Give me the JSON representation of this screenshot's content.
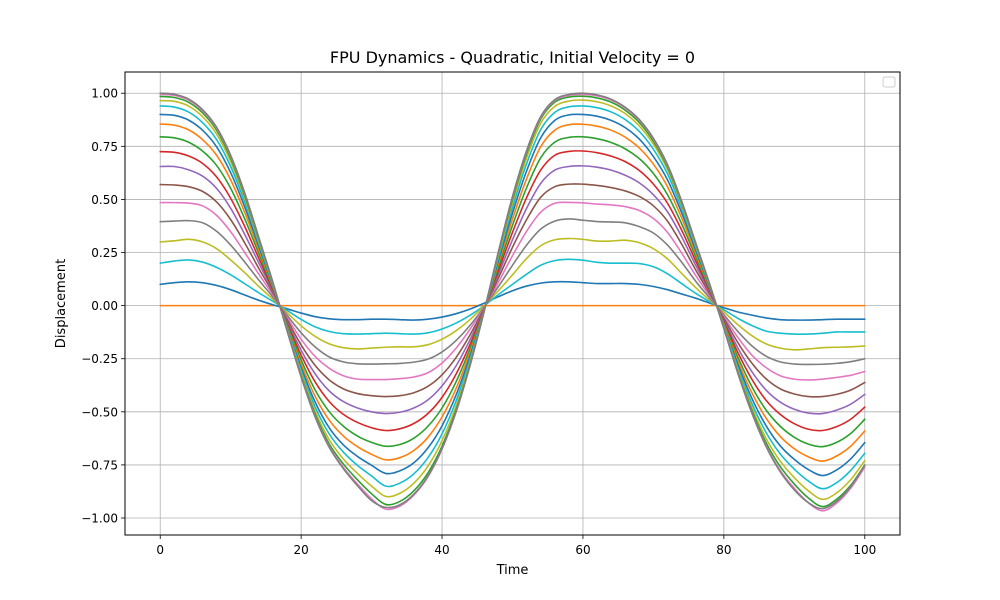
{
  "chart_data": {
    "type": "line",
    "title": "FPU Dynamics - Quadratic, Initial Velocity = 0",
    "xlabel": "Time",
    "ylabel": "Displacement",
    "xlim": [
      -5,
      105
    ],
    "ylim": [
      -1.08,
      1.1
    ],
    "x_ticks": [
      0,
      20,
      40,
      60,
      80,
      100
    ],
    "x_tick_labels": [
      "0",
      "20",
      "40",
      "60",
      "80",
      "100"
    ],
    "y_ticks": [
      -1.0,
      -0.75,
      -0.5,
      -0.25,
      0.0,
      0.25,
      0.5,
      0.75,
      1.0
    ],
    "y_tick_labels": [
      "−1.00",
      "−0.75",
      "−0.50",
      "−0.25",
      "0.00",
      "0.25",
      "0.50",
      "0.75",
      "1.00"
    ],
    "grid": true,
    "legend": {
      "placement": "top-right",
      "entries": []
    },
    "x": [
      0,
      2,
      4,
      6,
      8,
      10,
      12,
      14,
      16,
      18,
      20,
      22,
      24,
      26,
      28,
      30,
      32,
      34,
      36,
      38,
      40,
      42,
      44,
      46,
      48,
      50,
      52,
      54,
      56,
      58,
      60,
      62,
      64,
      66,
      68,
      70,
      72,
      74,
      76,
      78,
      80,
      82,
      84,
      86,
      88,
      90,
      92,
      94,
      96,
      98,
      100
    ],
    "series": [
      {
        "color": "#ff7f0e",
        "values": [
          0,
          0,
          0,
          0,
          0,
          0,
          0,
          0,
          0,
          0,
          0,
          0,
          0,
          0,
          0,
          0,
          0,
          0,
          0,
          0,
          0,
          0,
          0,
          0,
          0,
          0,
          0,
          0,
          0,
          0,
          0,
          0,
          0,
          0,
          0,
          0,
          0,
          0,
          0,
          0,
          0,
          0,
          0,
          0,
          0,
          0,
          0,
          0,
          0,
          0,
          0
        ]
      },
      {
        "color": "#1f77b4",
        "values": [
          0.1,
          0.108,
          0.112,
          0.108,
          0.095,
          0.075,
          0.05,
          0.025,
          0.004,
          -0.015,
          -0.035,
          -0.052,
          -0.062,
          -0.066,
          -0.066,
          -0.064,
          -0.064,
          -0.066,
          -0.068,
          -0.064,
          -0.054,
          -0.038,
          -0.016,
          0.012,
          0.042,
          0.07,
          0.092,
          0.106,
          0.112,
          0.112,
          0.108,
          0.104,
          0.104,
          0.104,
          0.1,
          0.09,
          0.075,
          0.055,
          0.035,
          0.012,
          -0.01,
          -0.03,
          -0.045,
          -0.058,
          -0.066,
          -0.068,
          -0.068,
          -0.066,
          -0.064,
          -0.064,
          -0.064
        ]
      },
      {
        "color": "#17becf",
        "values": [
          0.2,
          0.21,
          0.215,
          0.205,
          0.18,
          0.145,
          0.103,
          0.06,
          0.02,
          -0.022,
          -0.065,
          -0.1,
          -0.122,
          -0.132,
          -0.134,
          -0.132,
          -0.13,
          -0.132,
          -0.134,
          -0.128,
          -0.11,
          -0.082,
          -0.045,
          0.0,
          0.052,
          0.1,
          0.148,
          0.19,
          0.212,
          0.218,
          0.214,
          0.204,
          0.2,
          0.2,
          0.198,
          0.183,
          0.15,
          0.104,
          0.058,
          0.018,
          -0.02,
          -0.06,
          -0.094,
          -0.12,
          -0.13,
          -0.134,
          -0.134,
          -0.13,
          -0.124,
          -0.124,
          -0.124
        ]
      },
      {
        "color": "#bcbd22",
        "values": [
          0.3,
          0.305,
          0.312,
          0.3,
          0.268,
          0.215,
          0.155,
          0.09,
          0.03,
          -0.033,
          -0.095,
          -0.145,
          -0.18,
          -0.198,
          -0.204,
          -0.2,
          -0.196,
          -0.194,
          -0.194,
          -0.184,
          -0.158,
          -0.118,
          -0.065,
          0.0,
          0.07,
          0.145,
          0.222,
          0.282,
          0.31,
          0.316,
          0.312,
          0.304,
          0.304,
          0.308,
          0.296,
          0.268,
          0.22,
          0.152,
          0.085,
          0.025,
          -0.03,
          -0.09,
          -0.142,
          -0.18,
          -0.2,
          -0.208,
          -0.204,
          -0.198,
          -0.196,
          -0.194,
          -0.19
        ]
      },
      {
        "color": "#7f7f7f",
        "values": [
          0.395,
          0.398,
          0.4,
          0.39,
          0.35,
          0.285,
          0.205,
          0.12,
          0.04,
          -0.045,
          -0.128,
          -0.195,
          -0.242,
          -0.265,
          -0.274,
          -0.275,
          -0.274,
          -0.272,
          -0.266,
          -0.252,
          -0.218,
          -0.164,
          -0.092,
          -0.005,
          0.09,
          0.19,
          0.285,
          0.36,
          0.398,
          0.408,
          0.402,
          0.396,
          0.394,
          0.39,
          0.372,
          0.342,
          0.285,
          0.205,
          0.115,
          0.035,
          -0.043,
          -0.122,
          -0.19,
          -0.238,
          -0.265,
          -0.275,
          -0.277,
          -0.276,
          -0.272,
          -0.264,
          -0.25
        ]
      },
      {
        "color": "#e377c2",
        "values": [
          0.485,
          0.485,
          0.483,
          0.47,
          0.425,
          0.348,
          0.25,
          0.148,
          0.05,
          -0.055,
          -0.158,
          -0.24,
          -0.295,
          -0.33,
          -0.346,
          -0.348,
          -0.348,
          -0.344,
          -0.336,
          -0.316,
          -0.27,
          -0.2,
          -0.11,
          -0.007,
          0.11,
          0.235,
          0.35,
          0.44,
          0.482,
          0.486,
          0.484,
          0.478,
          0.474,
          0.466,
          0.448,
          0.41,
          0.345,
          0.248,
          0.142,
          0.045,
          -0.052,
          -0.15,
          -0.234,
          -0.292,
          -0.33,
          -0.346,
          -0.35,
          -0.346,
          -0.338,
          -0.328,
          -0.31
        ]
      },
      {
        "color": "#8c564b",
        "values": [
          0.57,
          0.568,
          0.56,
          0.538,
          0.488,
          0.405,
          0.295,
          0.175,
          0.06,
          -0.065,
          -0.185,
          -0.282,
          -0.35,
          -0.392,
          -0.414,
          -0.424,
          -0.428,
          -0.424,
          -0.41,
          -0.38,
          -0.326,
          -0.244,
          -0.136,
          -0.01,
          0.13,
          0.275,
          0.405,
          0.51,
          0.56,
          0.572,
          0.572,
          0.566,
          0.556,
          0.54,
          0.514,
          0.47,
          0.398,
          0.29,
          0.168,
          0.055,
          -0.06,
          -0.175,
          -0.272,
          -0.345,
          -0.392,
          -0.416,
          -0.428,
          -0.428,
          -0.418,
          -0.398,
          -0.362
        ]
      },
      {
        "color": "#9467bd",
        "values": [
          0.655,
          0.655,
          0.64,
          0.61,
          0.552,
          0.458,
          0.335,
          0.2,
          0.068,
          -0.075,
          -0.21,
          -0.322,
          -0.402,
          -0.452,
          -0.482,
          -0.5,
          -0.508,
          -0.502,
          -0.482,
          -0.444,
          -0.378,
          -0.283,
          -0.158,
          -0.012,
          0.148,
          0.31,
          0.458,
          0.575,
          0.638,
          0.655,
          0.658,
          0.652,
          0.638,
          0.614,
          0.578,
          0.522,
          0.442,
          0.325,
          0.19,
          0.063,
          -0.068,
          -0.2,
          -0.312,
          -0.398,
          -0.454,
          -0.488,
          -0.506,
          -0.508,
          -0.492,
          -0.464,
          -0.418
        ]
      },
      {
        "color": "#d62728",
        "values": [
          0.725,
          0.722,
          0.705,
          0.67,
          0.606,
          0.505,
          0.372,
          0.222,
          0.075,
          -0.083,
          -0.233,
          -0.36,
          -0.452,
          -0.512,
          -0.55,
          -0.575,
          -0.588,
          -0.58,
          -0.555,
          -0.508,
          -0.432,
          -0.322,
          -0.18,
          -0.015,
          0.165,
          0.345,
          0.508,
          0.638,
          0.708,
          0.726,
          0.728,
          0.72,
          0.704,
          0.678,
          0.636,
          0.572,
          0.482,
          0.356,
          0.21,
          0.07,
          -0.075,
          -0.222,
          -0.348,
          -0.446,
          -0.512,
          -0.556,
          -0.582,
          -0.588,
          -0.57,
          -0.535,
          -0.478
        ]
      },
      {
        "color": "#2ca02c",
        "values": [
          0.795,
          0.79,
          0.77,
          0.728,
          0.66,
          0.552,
          0.408,
          0.244,
          0.082,
          -0.09,
          -0.256,
          -0.398,
          -0.5,
          -0.568,
          -0.614,
          -0.644,
          -0.662,
          -0.654,
          -0.624,
          -0.568,
          -0.482,
          -0.358,
          -0.2,
          -0.017,
          0.182,
          0.378,
          0.555,
          0.696,
          0.77,
          0.792,
          0.795,
          0.786,
          0.768,
          0.738,
          0.692,
          0.622,
          0.522,
          0.386,
          0.23,
          0.077,
          -0.082,
          -0.244,
          -0.383,
          -0.492,
          -0.568,
          -0.62,
          -0.652,
          -0.664,
          -0.644,
          -0.602,
          -0.535
        ]
      },
      {
        "color": "#ff7f0e",
        "values": [
          0.855,
          0.85,
          0.828,
          0.782,
          0.708,
          0.592,
          0.438,
          0.262,
          0.088,
          -0.097,
          -0.275,
          -0.428,
          -0.54,
          -0.614,
          -0.664,
          -0.7,
          -0.726,
          -0.716,
          -0.682,
          -0.62,
          -0.524,
          -0.39,
          -0.217,
          -0.018,
          0.198,
          0.408,
          0.597,
          0.748,
          0.826,
          0.852,
          0.854,
          0.845,
          0.826,
          0.793,
          0.742,
          0.666,
          0.56,
          0.414,
          0.247,
          0.083,
          -0.088,
          -0.262,
          -0.412,
          -0.53,
          -0.616,
          -0.674,
          -0.712,
          -0.732,
          -0.708,
          -0.662,
          -0.59
        ]
      },
      {
        "color": "#1f77b4",
        "values": [
          0.9,
          0.896,
          0.874,
          0.826,
          0.748,
          0.626,
          0.464,
          0.278,
          0.093,
          -0.103,
          -0.292,
          -0.455,
          -0.576,
          -0.656,
          -0.71,
          -0.752,
          -0.79,
          -0.778,
          -0.74,
          -0.67,
          -0.566,
          -0.42,
          -0.234,
          -0.02,
          0.212,
          0.436,
          0.634,
          0.79,
          0.872,
          0.898,
          0.9,
          0.892,
          0.872,
          0.838,
          0.784,
          0.702,
          0.592,
          0.438,
          0.262,
          0.088,
          -0.094,
          -0.278,
          -0.438,
          -0.566,
          -0.66,
          -0.724,
          -0.772,
          -0.8,
          -0.774,
          -0.722,
          -0.645
        ]
      },
      {
        "color": "#17becf",
        "values": [
          0.94,
          0.935,
          0.912,
          0.862,
          0.782,
          0.655,
          0.486,
          0.292,
          0.098,
          -0.108,
          -0.306,
          -0.478,
          -0.605,
          -0.69,
          -0.752,
          -0.802,
          -0.85,
          -0.836,
          -0.792,
          -0.716,
          -0.604,
          -0.448,
          -0.25,
          -0.021,
          0.226,
          0.462,
          0.668,
          0.828,
          0.91,
          0.936,
          0.94,
          0.932,
          0.912,
          0.876,
          0.82,
          0.736,
          0.62,
          0.459,
          0.275,
          0.093,
          -0.098,
          -0.293,
          -0.462,
          -0.598,
          -0.698,
          -0.77,
          -0.826,
          -0.862,
          -0.834,
          -0.776,
          -0.695
        ]
      },
      {
        "color": "#bcbd22",
        "values": [
          0.965,
          0.962,
          0.94,
          0.89,
          0.808,
          0.678,
          0.504,
          0.303,
          0.102,
          -0.112,
          -0.318,
          -0.498,
          -0.632,
          -0.722,
          -0.79,
          -0.85,
          -0.898,
          -0.884,
          -0.836,
          -0.756,
          -0.636,
          -0.472,
          -0.264,
          -0.022,
          0.238,
          0.484,
          0.696,
          0.858,
          0.938,
          0.963,
          0.968,
          0.96,
          0.94,
          0.904,
          0.846,
          0.76,
          0.64,
          0.474,
          0.284,
          0.096,
          -0.102,
          -0.305,
          -0.482,
          -0.626,
          -0.732,
          -0.81,
          -0.872,
          -0.912,
          -0.882,
          -0.82,
          -0.73
        ]
      },
      {
        "color": "#2ca02c",
        "values": [
          0.985,
          0.98,
          0.958,
          0.908,
          0.826,
          0.694,
          0.517,
          0.311,
          0.105,
          -0.115,
          -0.327,
          -0.513,
          -0.652,
          -0.746,
          -0.82,
          -0.886,
          -0.936,
          -0.922,
          -0.872,
          -0.788,
          -0.662,
          -0.49,
          -0.274,
          -0.023,
          0.246,
          0.5,
          0.716,
          0.878,
          0.958,
          0.982,
          0.986,
          0.978,
          0.958,
          0.92,
          0.862,
          0.774,
          0.652,
          0.484,
          0.29,
          0.098,
          -0.105,
          -0.313,
          -0.496,
          -0.646,
          -0.758,
          -0.84,
          -0.906,
          -0.946,
          -0.912,
          -0.846,
          -0.75
        ]
      },
      {
        "color": "#e377c2",
        "values": [
          0.995,
          0.99,
          0.968,
          0.918,
          0.836,
          0.704,
          0.526,
          0.317,
          0.108,
          -0.117,
          -0.333,
          -0.522,
          -0.664,
          -0.762,
          -0.84,
          -0.91,
          -0.958,
          -0.944,
          -0.892,
          -0.806,
          -0.676,
          -0.5,
          -0.28,
          -0.024,
          0.252,
          0.51,
          0.726,
          0.886,
          0.966,
          0.99,
          0.995,
          0.988,
          0.968,
          0.93,
          0.872,
          0.784,
          0.66,
          0.49,
          0.294,
          0.1,
          -0.107,
          -0.318,
          -0.505,
          -0.66,
          -0.776,
          -0.86,
          -0.928,
          -0.966,
          -0.93,
          -0.86,
          -0.76
        ]
      },
      {
        "color": "#7f7f7f",
        "values": [
          1.0,
          0.995,
          0.973,
          0.923,
          0.84,
          0.708,
          0.53,
          0.32,
          0.109,
          -0.118,
          -0.336,
          -0.526,
          -0.668,
          -0.768,
          -0.848,
          -0.918,
          -0.95,
          -0.938,
          -0.888,
          -0.802,
          -0.672,
          -0.498,
          -0.278,
          -0.024,
          0.254,
          0.514,
          0.73,
          0.89,
          0.97,
          0.994,
          1.0,
          0.992,
          0.972,
          0.934,
          0.876,
          0.788,
          0.664,
          0.493,
          0.296,
          0.1,
          -0.108,
          -0.32,
          -0.508,
          -0.664,
          -0.782,
          -0.868,
          -0.928,
          -0.956,
          -0.922,
          -0.852,
          -0.752
        ]
      }
    ]
  }
}
